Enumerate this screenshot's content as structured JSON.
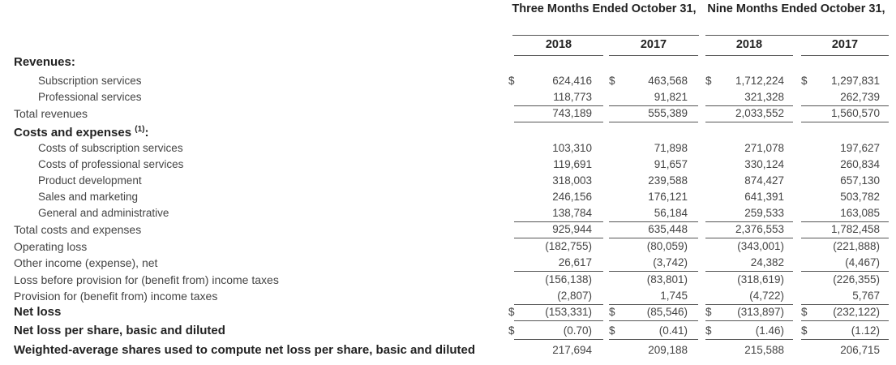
{
  "header": {
    "group1": "Three Months Ended October 31,",
    "group2": "Nine Months Ended October 31,",
    "years": [
      "2018",
      "2017",
      "2018",
      "2017"
    ]
  },
  "currency_symbol": "$",
  "rows": [
    {
      "label": "Revenues:",
      "style": "bold",
      "values": [
        "",
        "",
        "",
        ""
      ]
    },
    {
      "label": "Subscription services",
      "style": "indent",
      "dollar": true,
      "values": [
        "624,416",
        "463,568",
        "1,712,224",
        "1,297,831"
      ]
    },
    {
      "label": "Professional services",
      "style": "indent",
      "values": [
        "118,773",
        "91,821",
        "321,328",
        "262,739"
      ]
    },
    {
      "label": "Total revenues",
      "style": "plain",
      "values": [
        "743,189",
        "555,389",
        "2,033,552",
        "1,560,570"
      ]
    },
    {
      "label": "Costs and expenses",
      "sup": "(1)",
      "suffix": ":",
      "style": "bold",
      "values": [
        "",
        "",
        "",
        ""
      ]
    },
    {
      "label": "Costs of subscription services",
      "style": "indent",
      "values": [
        "103,310",
        "71,898",
        "271,078",
        "197,627"
      ]
    },
    {
      "label": "Costs of professional services",
      "style": "indent",
      "values": [
        "119,691",
        "91,657",
        "330,124",
        "260,834"
      ]
    },
    {
      "label": "Product development",
      "style": "indent",
      "values": [
        "318,003",
        "239,588",
        "874,427",
        "657,130"
      ]
    },
    {
      "label": "Sales and marketing",
      "style": "indent",
      "values": [
        "246,156",
        "176,121",
        "641,391",
        "503,782"
      ]
    },
    {
      "label": "General and administrative",
      "style": "indent",
      "values": [
        "138,784",
        "56,184",
        "259,533",
        "163,085"
      ]
    },
    {
      "label": "Total costs and expenses",
      "style": "plain",
      "values": [
        "925,944",
        "635,448",
        "2,376,553",
        "1,782,458"
      ]
    },
    {
      "label": "Operating loss",
      "style": "plain",
      "values": [
        "(182,755)",
        "(80,059)",
        "(343,001)",
        "(221,888)"
      ]
    },
    {
      "label": "Other income (expense), net",
      "style": "plain",
      "values": [
        "26,617",
        "(3,742)",
        "24,382",
        "(4,467)"
      ]
    },
    {
      "label": "Loss before provision for (benefit from) income taxes",
      "style": "plain",
      "values": [
        "(156,138)",
        "(83,801)",
        "(318,619)",
        "(226,355)"
      ]
    },
    {
      "label": "Provision for (benefit from) income taxes",
      "style": "plain",
      "values": [
        "(2,807)",
        "1,745",
        "(4,722)",
        "5,767"
      ]
    },
    {
      "label": "Net loss",
      "style": "bold",
      "dollar": true,
      "values": [
        "(153,331)",
        "(85,546)",
        "(313,897)",
        "(232,122)"
      ]
    },
    {
      "label": "Net loss per share, basic and diluted",
      "style": "bold",
      "dollar": true,
      "values": [
        "(0.70)",
        "(0.41)",
        "(1.46)",
        "(1.12)"
      ]
    },
    {
      "label": "Weighted-average shares used to compute net loss per share, basic and diluted",
      "style": "bold",
      "values": [
        "217,694",
        "209,188",
        "215,588",
        "206,715"
      ]
    }
  ]
}
